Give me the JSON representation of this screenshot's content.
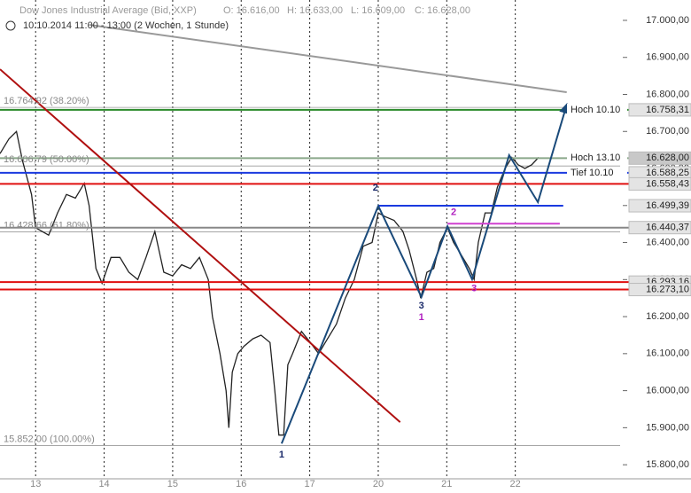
{
  "chart_data": {
    "type": "line",
    "title": "Dow Jones Industrial Average (Bid, XXP)",
    "ohlc": [
      "O: 16.616,00",
      "H: 16.633,00",
      "L: 16.609,00",
      "C: 16.628,00"
    ],
    "subtitle": "10.10.2014 11:00 - 13:00 (2 Wochen, 1 Stunde)",
    "color": "#222222",
    "x": [
      -0.52,
      -0.39,
      -0.28,
      -0.19,
      -0.06,
      0,
      0.19,
      0.32,
      0.45,
      0.58,
      0.71,
      0.78,
      0.88,
      0.97,
      1.1,
      1.23,
      1.36,
      1.49,
      1.61,
      1.74,
      1.87,
      2.0,
      2.13,
      2.26,
      2.39,
      2.52,
      2.58,
      2.69,
      2.78,
      2.82,
      2.87,
      2.95,
      3.04,
      3.17,
      3.29,
      3.42,
      3.49,
      3.55,
      3.62,
      3.68,
      3.75,
      3.88,
      4.01,
      4.13,
      4.26,
      4.39,
      4.52,
      4.65,
      4.78,
      4.91,
      5.0,
      5.1,
      5.23,
      5.36,
      5.45,
      5.56,
      5.62,
      5.71,
      5.81,
      5.9,
      6.01,
      6.1,
      6.2,
      6.33,
      6.4,
      6.46,
      6.56,
      6.65,
      6.74,
      6.85,
      6.95,
      7.04,
      7.14,
      7.24,
      7.34
    ],
    "values": [
      16640,
      16680,
      16700,
      16620,
      16530,
      16440,
      16420,
      16480,
      16530,
      16520,
      16560,
      16500,
      16330,
      16290,
      16360,
      16360,
      16320,
      16300,
      16360,
      16430,
      16320,
      16310,
      16340,
      16330,
      16360,
      16300,
      16200,
      16100,
      16000,
      15900,
      16050,
      16100,
      16120,
      16140,
      16150,
      16130,
      16000,
      15880,
      15880,
      16070,
      16100,
      16160,
      16130,
      16100,
      16140,
      16180,
      16250,
      16300,
      16390,
      16400,
      16480,
      16470,
      16460,
      16430,
      16380,
      16300,
      16250,
      16320,
      16330,
      16400,
      16440,
      16400,
      16370,
      16330,
      16300,
      16400,
      16480,
      16480,
      16550,
      16600,
      16630,
      16610,
      16600,
      16610,
      16630
    ],
    "xlim": [
      -0.52,
      8.53
    ],
    "xticks": [
      {
        "value": 0,
        "label": "13"
      },
      {
        "value": 1,
        "label": "14"
      },
      {
        "value": 2,
        "label": "15"
      },
      {
        "value": 3,
        "label": "16"
      },
      {
        "value": 4,
        "label": "17"
      },
      {
        "value": 5,
        "label": "20"
      },
      {
        "value": 6,
        "label": "21"
      },
      {
        "value": 7,
        "label": "22"
      }
    ],
    "ylim": [
      15762,
      17055
    ],
    "yticks": [
      {
        "value": 17000,
        "label": "17.000,00"
      },
      {
        "value": 16900,
        "label": "16.900,00"
      },
      {
        "value": 16800,
        "label": "16.800,00"
      },
      {
        "value": 16700,
        "label": "16.700,00"
      },
      {
        "value": 16600,
        "label": "16.600,00"
      },
      {
        "value": 16500,
        "label": "16.500,00"
      },
      {
        "value": 16400,
        "label": "16.400,00"
      },
      {
        "value": 16300,
        "label": "16.300,00"
      },
      {
        "value": 16200,
        "label": "16.200,00"
      },
      {
        "value": 16100,
        "label": "16.100,00"
      },
      {
        "value": 16000,
        "label": "16.000,00"
      },
      {
        "value": 15900,
        "label": "15.900,00"
      },
      {
        "value": 15800,
        "label": "15.800,00"
      }
    ],
    "fib_levels": [
      {
        "value": 16764.92,
        "label": "16.764,92 (38.20%)"
      },
      {
        "value": 16606.79,
        "label": "16.606,79 (50.00%)"
      },
      {
        "value": 16428.66,
        "label": "16.428,66 (61.80%)"
      },
      {
        "value": 15852,
        "label": "15.852,00 (100.00%)"
      }
    ],
    "levels": [
      {
        "value": 16758.31,
        "label": "16.758,31",
        "color": "#2a8a2a",
        "name": "Hoch 10.10"
      },
      {
        "value": 16628,
        "label": "16.628,00",
        "color": "#8aa88a",
        "name": "Hoch 13.10"
      },
      {
        "value": 16588.25,
        "label": "16.588,25",
        "color": "#1a3adf",
        "name": "Tief 10.10"
      },
      {
        "value": 16558.43,
        "label": "16.558,43",
        "color": "#e01010"
      },
      {
        "value": 16499.39,
        "label": "16.499,39",
        "color": "#1a3adf",
        "x_range": [
          5.0,
          7.7
        ]
      },
      {
        "value": 16440.37,
        "label": "16.440,37",
        "color": "#888888"
      },
      {
        "value": 16293.16,
        "label": "16.293,16",
        "color": "#e01010"
      },
      {
        "value": 16273.1,
        "label": "16.273,10",
        "color": "#e01010"
      }
    ],
    "trend_lines": [
      {
        "color": "#b01010",
        "x": [
          -0.52,
          5.32
        ],
        "y": [
          16868,
          15915
        ]
      },
      {
        "color": "#999999",
        "x": [
          0.78,
          7.75
        ],
        "y": [
          16988,
          16806
        ]
      },
      {
        "color": "#1a4a7a",
        "x": [
          3.59,
          5.0,
          5.63,
          6.01,
          6.37,
          6.91,
          7.33,
          7.75
        ],
        "y": [
          15857,
          16499,
          16253,
          16444,
          16301,
          16636,
          16509,
          16772
        ],
        "arrow": true
      },
      {
        "color": "#d040d0",
        "x": [
          6.01,
          7.65
        ],
        "y": [
          16451,
          16451
        ]
      }
    ],
    "wave_labels": [
      {
        "text": "1",
        "x": 3.59,
        "y": 15826,
        "color": "#1a2a6a"
      },
      {
        "text": "2",
        "x": 4.96,
        "y": 16547,
        "color": "#1a2a6a"
      },
      {
        "text": "3",
        "x": 5.63,
        "y": 16229,
        "color": "#1a2a6a"
      },
      {
        "text": "1",
        "x": 5.63,
        "y": 16198,
        "color": "#b020c0"
      },
      {
        "text": "2",
        "x": 6.1,
        "y": 16481,
        "color": "#b020c0"
      },
      {
        "text": "3",
        "x": 6.4,
        "y": 16275,
        "color": "#b020c0"
      }
    ]
  }
}
